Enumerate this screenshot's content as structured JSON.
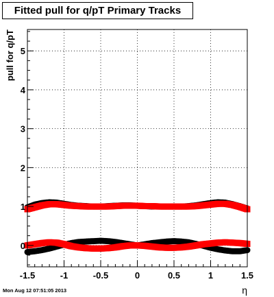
{
  "chart_data": {
    "type": "scatter",
    "title": "Fitted pull for q/pT  Primary Tracks",
    "xlabel": "η",
    "ylabel": "pull for q/pT",
    "xlim": [
      -1.5,
      1.5
    ],
    "ylim": [
      -0.55,
      5.55
    ],
    "x_ticks": [
      "-1.5",
      "-1",
      "-0.5",
      "0",
      "0.5",
      "1",
      "1.5"
    ],
    "y_ticks": [
      "0",
      "1",
      "2",
      "3",
      "4",
      "5"
    ],
    "grid": true,
    "legend": "none",
    "series": [
      {
        "color": "#000000",
        "marker": "circle",
        "x": [
          -1.5,
          -1.4,
          -1.3,
          -1.2,
          -1.1,
          -1.0,
          -0.9,
          -0.8,
          -0.7,
          -0.6,
          -0.5,
          -0.4,
          -0.3,
          -0.2,
          -0.1,
          0.0,
          0.1,
          0.2,
          0.3,
          0.4,
          0.5,
          0.6,
          0.7,
          0.8,
          0.9,
          1.0,
          1.1,
          1.2,
          1.3,
          1.4,
          1.5
        ],
        "y": [
          -0.17,
          -0.15,
          -0.12,
          -0.08,
          -0.03,
          0.02,
          0.06,
          0.09,
          0.1,
          0.11,
          0.12,
          0.11,
          0.09,
          0.06,
          0.03,
          0.0,
          0.03,
          0.06,
          0.08,
          0.1,
          0.11,
          0.1,
          0.08,
          0.04,
          -0.01,
          -0.06,
          -0.1,
          -0.13,
          -0.15,
          -0.15,
          -0.12
        ]
      },
      {
        "color": "#000000",
        "marker": "circle",
        "x": [
          -1.5,
          -1.4,
          -1.3,
          -1.2,
          -1.1,
          -1.0,
          -0.9,
          -0.8,
          -0.7,
          -0.6,
          -0.5,
          -0.4,
          -0.3,
          -0.2,
          -0.1,
          0.0,
          0.1,
          0.2,
          0.3,
          0.4,
          0.5,
          0.6,
          0.7,
          0.8,
          0.9,
          1.0,
          1.1,
          1.2,
          1.3,
          1.4,
          1.5
        ],
        "y": [
          0.98,
          1.05,
          1.09,
          1.11,
          1.1,
          1.07,
          1.04,
          1.02,
          1.01,
          1.0,
          1.0,
          1.01,
          1.02,
          1.03,
          1.03,
          1.02,
          1.01,
          1.0,
          1.0,
          1.0,
          1.0,
          1.0,
          1.01,
          1.03,
          1.06,
          1.09,
          1.11,
          1.1,
          1.06,
          1.01,
          0.95
        ]
      },
      {
        "color": "#ff0000",
        "marker": "square",
        "x": [
          -1.5,
          -1.4,
          -1.3,
          -1.2,
          -1.1,
          -1.0,
          -0.9,
          -0.8,
          -0.7,
          -0.6,
          -0.5,
          -0.4,
          -0.3,
          -0.2,
          -0.1,
          0.0,
          0.1,
          0.2,
          0.3,
          0.4,
          0.5,
          0.6,
          0.7,
          0.8,
          0.9,
          1.0,
          1.1,
          1.2,
          1.3,
          1.4,
          1.5
        ],
        "y": [
          0.93,
          0.98,
          1.03,
          1.06,
          1.06,
          1.04,
          1.02,
          1.01,
          1.0,
          1.0,
          1.0,
          1.0,
          1.01,
          1.02,
          1.02,
          1.02,
          1.01,
          1.01,
          1.0,
          1.0,
          1.0,
          1.0,
          1.0,
          1.01,
          1.03,
          1.05,
          1.07,
          1.07,
          1.04,
          0.99,
          0.93
        ]
      },
      {
        "color": "#ff0000",
        "marker": "square",
        "x": [
          -1.5,
          -1.4,
          -1.3,
          -1.2,
          -1.1,
          -1.0,
          -0.9,
          -0.8,
          -0.7,
          -0.6,
          -0.5,
          -0.4,
          -0.3,
          -0.2,
          -0.1,
          0.0,
          0.1,
          0.2,
          0.3,
          0.4,
          0.5,
          0.6,
          0.7,
          0.8,
          0.9,
          1.0,
          1.1,
          1.2,
          1.3,
          1.4,
          1.5
        ],
        "y": [
          0.0,
          0.03,
          0.06,
          0.08,
          0.07,
          0.03,
          -0.02,
          -0.05,
          -0.07,
          -0.08,
          -0.08,
          -0.07,
          -0.05,
          -0.02,
          0.0,
          0.0,
          -0.01,
          -0.03,
          -0.05,
          -0.06,
          -0.06,
          -0.05,
          -0.03,
          0.0,
          0.03,
          0.05,
          0.07,
          0.08,
          0.07,
          0.06,
          0.04
        ]
      }
    ]
  },
  "footer": "Mon Aug 12 07:51:05 2013"
}
